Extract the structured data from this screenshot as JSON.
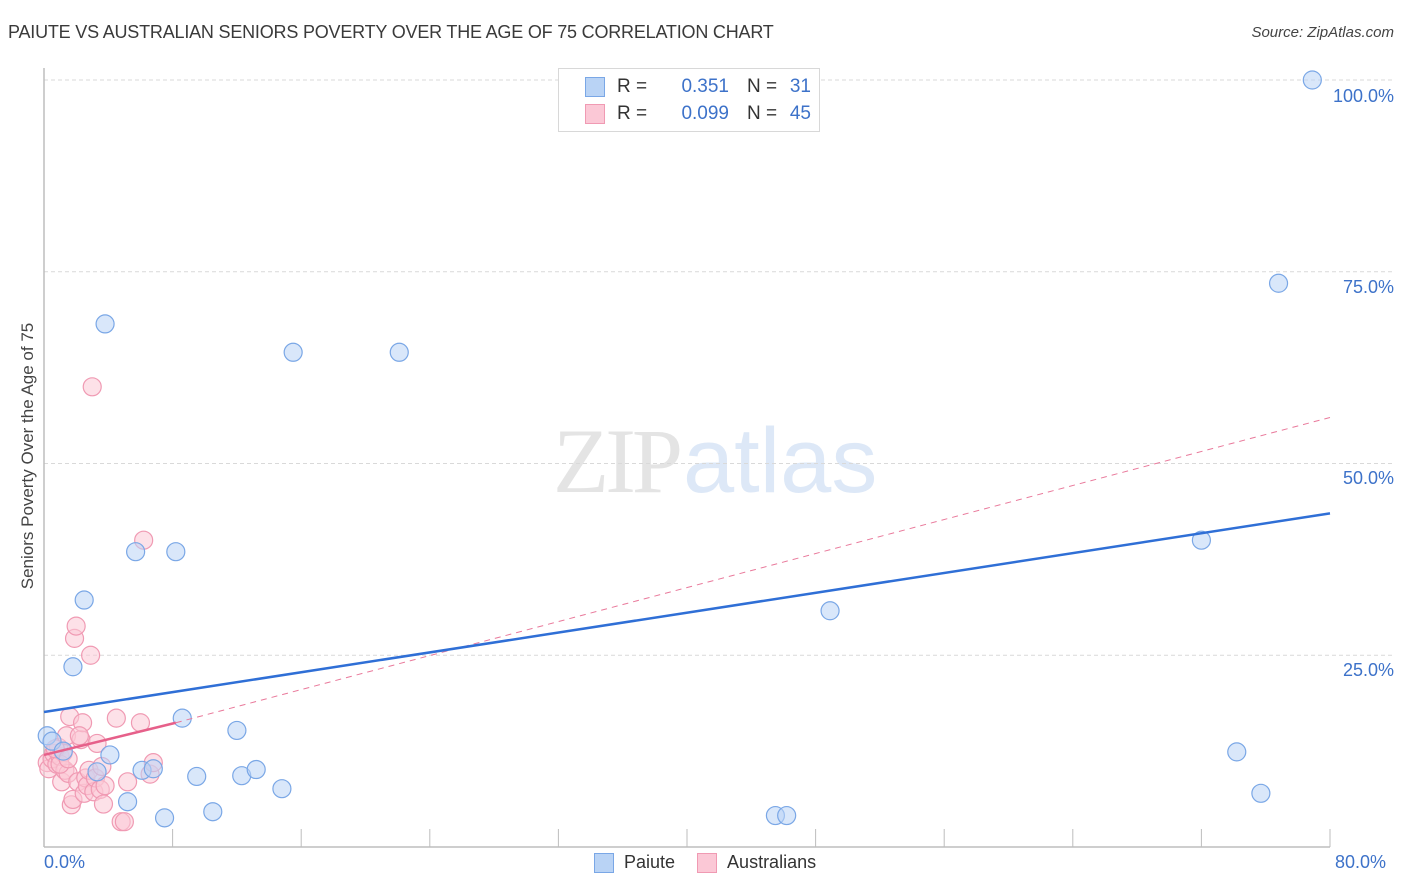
{
  "title": "PAIUTE VS AUSTRALIAN SENIORS POVERTY OVER THE AGE OF 75 CORRELATION CHART",
  "source": "Source: ZipAtlas.com",
  "watermark": {
    "part1": "ZIP",
    "part2": "atlas"
  },
  "legend": {
    "rows": [
      {
        "r_label": "R =",
        "r_value": "0.351",
        "n_label": "N =",
        "n_value": "31",
        "color": "#b9d3f5",
        "border": "#7aa7e6"
      },
      {
        "r_label": "R =",
        "r_value": "0.099",
        "n_label": "N =",
        "n_value": "45",
        "color": "#fbc8d6",
        "border": "#f09ab3"
      }
    ],
    "bottom": [
      {
        "label": "Paiute",
        "color": "#b9d3f5",
        "border": "#7aa7e6"
      },
      {
        "label": "Australians",
        "color": "#fbc8d6",
        "border": "#f09ab3"
      }
    ]
  },
  "axes": {
    "y_label": "Seniors Poverty Over the Age of 75",
    "y_ticks": [
      "100.0%",
      "75.0%",
      "50.0%",
      "25.0%"
    ],
    "x_ticks": [
      "0.0%",
      "80.0%"
    ]
  },
  "chart_data": {
    "type": "scatter",
    "title": "PAIUTE VS AUSTRALIAN SENIORS POVERTY OVER THE AGE OF 75 CORRELATION CHART",
    "xlabel": "",
    "ylabel": "Seniors Poverty Over the Age of 75",
    "xlim": [
      0,
      80
    ],
    "ylim": [
      0,
      100
    ],
    "x_tick_labels": [
      "0.0%",
      "80.0%"
    ],
    "y_tick_labels": [
      "25.0%",
      "50.0%",
      "75.0%",
      "100.0%"
    ],
    "grid": true,
    "legend_position": "top-center and bottom",
    "series": [
      {
        "name": "Paiute",
        "color": "#b9d3f5",
        "stroke": "#7aa7e6",
        "R": 0.351,
        "N": 31,
        "trend": {
          "x": [
            0,
            80
          ],
          "y": [
            17.6,
            43.5
          ]
        },
        "points": [
          [
            0.2,
            14.5
          ],
          [
            0.5,
            13.8
          ],
          [
            1.2,
            12.5
          ],
          [
            1.8,
            23.5
          ],
          [
            2.5,
            32.2
          ],
          [
            3.8,
            68.2
          ],
          [
            3.3,
            9.8
          ],
          [
            4.1,
            12.0
          ],
          [
            5.2,
            5.9
          ],
          [
            5.7,
            38.5
          ],
          [
            6.1,
            10.0
          ],
          [
            6.8,
            10.2
          ],
          [
            7.5,
            3.8
          ],
          [
            8.2,
            38.5
          ],
          [
            8.6,
            16.8
          ],
          [
            9.5,
            9.2
          ],
          [
            10.5,
            4.6
          ],
          [
            12.0,
            15.2
          ],
          [
            12.3,
            9.3
          ],
          [
            13.2,
            10.1
          ],
          [
            14.8,
            7.6
          ],
          [
            15.5,
            64.5
          ],
          [
            22.1,
            64.5
          ],
          [
            45.5,
            4.1
          ],
          [
            46.2,
            4.1
          ],
          [
            48.9,
            30.8
          ],
          [
            72.0,
            40.0
          ],
          [
            74.2,
            12.4
          ],
          [
            75.7,
            7.0
          ],
          [
            76.8,
            73.5
          ],
          [
            78.9,
            100.0
          ]
        ]
      },
      {
        "name": "Australians",
        "color": "#fbc8d6",
        "stroke": "#f09ab3",
        "R": 0.099,
        "N": 45,
        "trend": {
          "x": [
            0,
            8.2
          ],
          "y": [
            12.0,
            16.2
          ],
          "dashed_extension": {
            "x": [
              8.2,
              80
            ],
            "y": [
              16.2,
              56.0
            ]
          }
        },
        "points": [
          [
            0.2,
            11.0
          ],
          [
            0.3,
            10.2
          ],
          [
            0.5,
            11.5
          ],
          [
            0.6,
            12.2
          ],
          [
            0.8,
            10.8
          ],
          [
            0.9,
            13.0
          ],
          [
            1.0,
            11.8
          ],
          [
            1.1,
            8.5
          ],
          [
            1.2,
            12.3
          ],
          [
            1.3,
            10.0
          ],
          [
            1.4,
            14.5
          ],
          [
            1.5,
            9.6
          ],
          [
            1.6,
            17.0
          ],
          [
            1.7,
            5.5
          ],
          [
            1.8,
            6.2
          ],
          [
            1.9,
            27.2
          ],
          [
            2.0,
            28.8
          ],
          [
            2.1,
            8.5
          ],
          [
            2.3,
            14.0
          ],
          [
            2.4,
            16.2
          ],
          [
            2.5,
            7.0
          ],
          [
            2.6,
            9.0
          ],
          [
            2.7,
            8.0
          ],
          [
            2.8,
            10.0
          ],
          [
            2.9,
            25.0
          ],
          [
            3.0,
            60.0
          ],
          [
            3.1,
            7.2
          ],
          [
            3.2,
            9.0
          ],
          [
            3.3,
            13.5
          ],
          [
            3.5,
            7.5
          ],
          [
            3.6,
            10.5
          ],
          [
            3.7,
            5.6
          ],
          [
            3.8,
            8.0
          ],
          [
            4.5,
            16.8
          ],
          [
            4.8,
            3.3
          ],
          [
            5.0,
            3.3
          ],
          [
            5.2,
            8.5
          ],
          [
            6.0,
            16.2
          ],
          [
            6.2,
            40.0
          ],
          [
            6.6,
            9.5
          ],
          [
            6.8,
            11.0
          ],
          [
            2.2,
            14.5
          ],
          [
            1.0,
            10.8
          ],
          [
            0.7,
            12.8
          ],
          [
            1.5,
            11.5
          ]
        ]
      }
    ]
  }
}
